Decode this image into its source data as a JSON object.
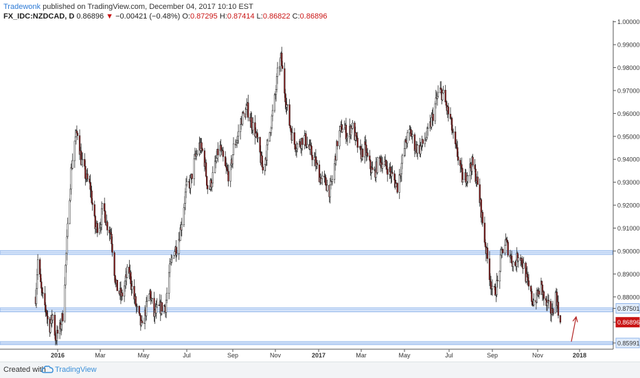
{
  "header": {
    "author": "Tradewonk",
    "published_text": "published on TradingView.com, December 04, 2017 10:10 EST",
    "symbol": "FX_IDC:NZDCAD, D",
    "last": "0.86896",
    "change_arrow": "▼",
    "change": "−0.00421 (−0.48%)",
    "o_label": "O:",
    "o_value": "0.87295",
    "h_label": "H:",
    "h_value": "0.87414",
    "l_label": "L:",
    "l_value": "0.86822",
    "c_label": "C:",
    "c_value": "0.86896"
  },
  "footer": {
    "created_with": "Created with",
    "brand": "TradingView",
    "logo_icon": "tradingview-cloud-icon"
  },
  "colors": {
    "up_candle": "#ffffff",
    "down_candle": "#8b1a1a",
    "wick": "#222222",
    "zone_fill": "#dbe8fb",
    "zone_line": "#8fb4ea",
    "last_price_badge": "#c91414",
    "level_badge": "#e1ecfa",
    "arrow": "#b22222"
  },
  "chart_data": {
    "type": "candlestick",
    "symbol": "FX_IDC:NZDCAD",
    "interval": "D",
    "x_ticks": [
      "2016",
      "Mar",
      "May",
      "Jul",
      "Sep",
      "Nov",
      "2017",
      "Mar",
      "May",
      "Jul",
      "Sep",
      "Nov",
      "2018"
    ],
    "y_ticks": [
      "1.00000",
      "0.99000",
      "0.98000",
      "0.97000",
      "0.96000",
      "0.95000",
      "0.94000",
      "0.93000",
      "0.92000",
      "0.91000",
      "0.90000",
      "0.89000",
      "0.88000",
      "0.87501",
      "0.86896",
      "0.85991"
    ],
    "ylim": [
      0.8575,
      1.0005
    ],
    "last_price": 0.86896,
    "price_path": [
      {
        "t": "2015-12-01",
        "p": 0.88
      },
      {
        "t": "2015-12-04",
        "p": 0.896
      },
      {
        "t": "2015-12-10",
        "p": 0.88
      },
      {
        "t": "2015-12-16",
        "p": 0.874
      },
      {
        "t": "2015-12-20",
        "p": 0.866
      },
      {
        "t": "2015-12-25",
        "p": 0.872
      },
      {
        "t": "2015-12-29",
        "p": 0.862
      },
      {
        "t": "2016-01-04",
        "p": 0.866
      },
      {
        "t": "2016-01-08",
        "p": 0.872
      },
      {
        "t": "2016-01-12",
        "p": 0.893
      },
      {
        "t": "2016-01-16",
        "p": 0.915
      },
      {
        "t": "2016-01-20",
        "p": 0.935
      },
      {
        "t": "2016-01-25",
        "p": 0.948
      },
      {
        "t": "2016-01-29",
        "p": 0.952
      },
      {
        "t": "2016-02-03",
        "p": 0.94
      },
      {
        "t": "2016-02-10",
        "p": 0.932
      },
      {
        "t": "2016-02-16",
        "p": 0.928
      },
      {
        "t": "2016-02-23",
        "p": 0.91
      },
      {
        "t": "2016-03-01",
        "p": 0.912
      },
      {
        "t": "2016-03-05",
        "p": 0.92
      },
      {
        "t": "2016-03-10",
        "p": 0.912
      },
      {
        "t": "2016-03-16",
        "p": 0.908
      },
      {
        "t": "2016-03-23",
        "p": 0.885
      },
      {
        "t": "2016-03-31",
        "p": 0.88
      },
      {
        "t": "2016-04-05",
        "p": 0.886
      },
      {
        "t": "2016-04-10",
        "p": 0.893
      },
      {
        "t": "2016-04-16",
        "p": 0.882
      },
      {
        "t": "2016-04-22",
        "p": 0.874
      },
      {
        "t": "2016-04-29",
        "p": 0.866
      },
      {
        "t": "2016-05-04",
        "p": 0.874
      },
      {
        "t": "2016-05-10",
        "p": 0.882
      },
      {
        "t": "2016-05-16",
        "p": 0.872
      },
      {
        "t": "2016-05-22",
        "p": 0.875
      },
      {
        "t": "2016-06-01",
        "p": 0.876
      },
      {
        "t": "2016-06-06",
        "p": 0.89
      },
      {
        "t": "2016-06-12",
        "p": 0.9
      },
      {
        "t": "2016-06-18",
        "p": 0.902
      },
      {
        "t": "2016-06-24",
        "p": 0.913
      },
      {
        "t": "2016-06-30",
        "p": 0.927
      },
      {
        "t": "2016-07-06",
        "p": 0.93
      },
      {
        "t": "2016-07-12",
        "p": 0.94
      },
      {
        "t": "2016-07-18",
        "p": 0.946
      },
      {
        "t": "2016-07-24",
        "p": 0.942
      },
      {
        "t": "2016-07-30",
        "p": 0.925
      },
      {
        "t": "2016-08-06",
        "p": 0.934
      },
      {
        "t": "2016-08-14",
        "p": 0.946
      },
      {
        "t": "2016-08-22",
        "p": 0.936
      },
      {
        "t": "2016-08-28",
        "p": 0.932
      },
      {
        "t": "2016-09-02",
        "p": 0.945
      },
      {
        "t": "2016-09-08",
        "p": 0.95
      },
      {
        "t": "2016-09-14",
        "p": 0.958
      },
      {
        "t": "2016-09-22",
        "p": 0.962
      },
      {
        "t": "2016-09-28",
        "p": 0.956
      },
      {
        "t": "2016-10-03",
        "p": 0.952
      },
      {
        "t": "2016-10-09",
        "p": 0.944
      },
      {
        "t": "2016-10-14",
        "p": 0.935
      },
      {
        "t": "2016-10-20",
        "p": 0.944
      },
      {
        "t": "2016-10-26",
        "p": 0.956
      },
      {
        "t": "2016-11-01",
        "p": 0.968
      },
      {
        "t": "2016-11-05",
        "p": 0.98
      },
      {
        "t": "2016-11-09",
        "p": 0.984
      },
      {
        "t": "2016-11-14",
        "p": 0.97
      },
      {
        "t": "2016-11-20",
        "p": 0.957
      },
      {
        "t": "2016-11-27",
        "p": 0.947
      },
      {
        "t": "2016-12-04",
        "p": 0.946
      },
      {
        "t": "2016-12-11",
        "p": 0.95
      },
      {
        "t": "2016-12-18",
        "p": 0.945
      },
      {
        "t": "2016-12-26",
        "p": 0.94
      },
      {
        "t": "2017-01-03",
        "p": 0.932
      },
      {
        "t": "2017-01-10",
        "p": 0.93
      },
      {
        "t": "2017-01-17",
        "p": 0.926
      },
      {
        "t": "2017-01-22",
        "p": 0.935
      },
      {
        "t": "2017-01-28",
        "p": 0.95
      },
      {
        "t": "2017-02-04",
        "p": 0.955
      },
      {
        "t": "2017-02-10",
        "p": 0.95
      },
      {
        "t": "2017-02-16",
        "p": 0.955
      },
      {
        "t": "2017-02-22",
        "p": 0.948
      },
      {
        "t": "2017-02-28",
        "p": 0.942
      },
      {
        "t": "2017-03-06",
        "p": 0.945
      },
      {
        "t": "2017-03-12",
        "p": 0.938
      },
      {
        "t": "2017-03-19",
        "p": 0.933
      },
      {
        "t": "2017-03-26",
        "p": 0.94
      },
      {
        "t": "2017-04-02",
        "p": 0.938
      },
      {
        "t": "2017-04-08",
        "p": 0.936
      },
      {
        "t": "2017-04-15",
        "p": 0.932
      },
      {
        "t": "2017-04-21",
        "p": 0.928
      },
      {
        "t": "2017-04-27",
        "p": 0.938
      },
      {
        "t": "2017-05-03",
        "p": 0.948
      },
      {
        "t": "2017-05-09",
        "p": 0.952
      },
      {
        "t": "2017-05-15",
        "p": 0.946
      },
      {
        "t": "2017-05-21",
        "p": 0.944
      },
      {
        "t": "2017-05-28",
        "p": 0.948
      },
      {
        "t": "2017-06-03",
        "p": 0.952
      },
      {
        "t": "2017-06-08",
        "p": 0.958
      },
      {
        "t": "2017-06-13",
        "p": 0.965
      },
      {
        "t": "2017-06-18",
        "p": 0.97
      },
      {
        "t": "2017-06-23",
        "p": 0.968
      },
      {
        "t": "2017-06-28",
        "p": 0.962
      },
      {
        "t": "2017-07-03",
        "p": 0.957
      },
      {
        "t": "2017-07-09",
        "p": 0.946
      },
      {
        "t": "2017-07-15",
        "p": 0.94
      },
      {
        "t": "2017-07-21",
        "p": 0.93
      },
      {
        "t": "2017-07-27",
        "p": 0.934
      },
      {
        "t": "2017-08-03",
        "p": 0.938
      },
      {
        "t": "2017-08-09",
        "p": 0.932
      },
      {
        "t": "2017-08-15",
        "p": 0.92
      },
      {
        "t": "2017-08-21",
        "p": 0.905
      },
      {
        "t": "2017-08-27",
        "p": 0.892
      },
      {
        "t": "2017-09-02",
        "p": 0.88
      },
      {
        "t": "2017-09-08",
        "p": 0.886
      },
      {
        "t": "2017-09-14",
        "p": 0.9
      },
      {
        "t": "2017-09-19",
        "p": 0.904
      },
      {
        "t": "2017-09-25",
        "p": 0.898
      },
      {
        "t": "2017-10-01",
        "p": 0.893
      },
      {
        "t": "2017-10-07",
        "p": 0.9
      },
      {
        "t": "2017-10-13",
        "p": 0.893
      },
      {
        "t": "2017-10-19",
        "p": 0.885
      },
      {
        "t": "2017-10-25",
        "p": 0.878
      },
      {
        "t": "2017-10-31",
        "p": 0.88
      },
      {
        "t": "2017-11-06",
        "p": 0.885
      },
      {
        "t": "2017-11-12",
        "p": 0.877
      },
      {
        "t": "2017-11-18",
        "p": 0.875
      },
      {
        "t": "2017-11-22",
        "p": 0.873
      },
      {
        "t": "2017-11-28",
        "p": 0.882
      },
      {
        "t": "2017-12-01",
        "p": 0.8729
      },
      {
        "t": "2017-12-04",
        "p": 0.86896
      }
    ],
    "zones": [
      {
        "low": 0.8985,
        "high": 0.9002
      },
      {
        "low": 0.8735,
        "high": 0.8752
      },
      {
        "low": 0.8592,
        "high": 0.8605
      }
    ],
    "level_badges": [
      0.87501,
      0.85991
    ],
    "annotations": [
      {
        "type": "arrow",
        "from": {
          "t": "2017-12-20",
          "p": 0.8605
        },
        "to": {
          "t": "2017-12-27",
          "p": 0.8713
        }
      }
    ],
    "grid": false,
    "legend": "none"
  }
}
